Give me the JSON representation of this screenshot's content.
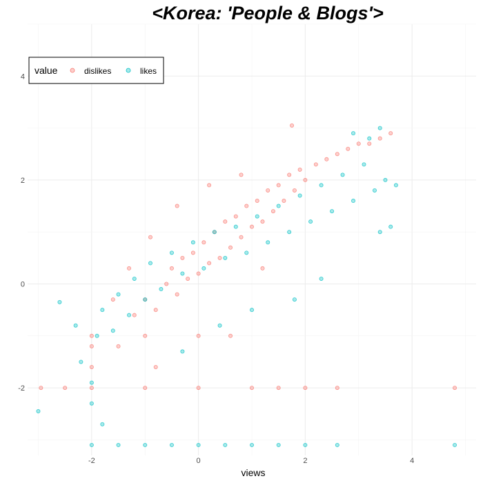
{
  "chart_data": {
    "type": "scatter",
    "title": "<Korea: 'People & Blogs'>",
    "xlabel": "views",
    "ylabel": "",
    "xlim": [
      -3.2,
      5.2
    ],
    "ylim": [
      -3.3,
      5.0
    ],
    "x_ticks": [
      -2,
      0,
      2,
      4
    ],
    "y_ticks": [
      -2,
      0,
      2,
      4
    ],
    "grid": true,
    "legend": {
      "title": "value",
      "position": "top-left",
      "entries": [
        "dislikes",
        "likes"
      ]
    },
    "series": [
      {
        "name": "dislikes",
        "color": "#F8766D",
        "points": [
          [
            -1.5,
            -1.2
          ],
          [
            -1.2,
            -0.6
          ],
          [
            -1.0,
            -0.3
          ],
          [
            -0.8,
            -0.5
          ],
          [
            -0.6,
            0.0
          ],
          [
            -0.5,
            0.3
          ],
          [
            -0.4,
            -0.2
          ],
          [
            -0.3,
            0.5
          ],
          [
            -0.2,
            0.1
          ],
          [
            -0.1,
            0.6
          ],
          [
            0.0,
            0.2
          ],
          [
            0.1,
            0.8
          ],
          [
            0.2,
            0.4
          ],
          [
            0.3,
            1.0
          ],
          [
            0.4,
            0.5
          ],
          [
            0.5,
            1.2
          ],
          [
            0.6,
            0.7
          ],
          [
            0.7,
            1.3
          ],
          [
            0.8,
            0.9
          ],
          [
            0.9,
            1.5
          ],
          [
            1.0,
            1.1
          ],
          [
            1.1,
            1.6
          ],
          [
            1.2,
            1.2
          ],
          [
            1.3,
            1.8
          ],
          [
            1.4,
            1.4
          ],
          [
            1.5,
            1.9
          ],
          [
            1.6,
            1.6
          ],
          [
            1.7,
            2.1
          ],
          [
            1.8,
            1.8
          ],
          [
            1.9,
            2.2
          ],
          [
            2.0,
            2.0
          ],
          [
            2.2,
            2.3
          ],
          [
            2.4,
            2.4
          ],
          [
            2.6,
            2.5
          ],
          [
            2.8,
            2.6
          ],
          [
            3.0,
            2.7
          ],
          [
            3.2,
            2.7
          ],
          [
            3.4,
            2.8
          ],
          [
            3.6,
            2.9
          ],
          [
            1.75,
            3.05
          ],
          [
            -1.3,
            0.3
          ],
          [
            -0.9,
            0.9
          ],
          [
            -0.4,
            1.5
          ],
          [
            0.2,
            1.9
          ],
          [
            0.8,
            2.1
          ],
          [
            -2.0,
            -1.2
          ],
          [
            -1.6,
            -0.3
          ],
          [
            1.2,
            0.3
          ],
          [
            -2.95,
            -2.0
          ],
          [
            -2.5,
            -2.0
          ],
          [
            -2.0,
            -2.0
          ],
          [
            -1.0,
            -2.0
          ],
          [
            0.0,
            -2.0
          ],
          [
            1.0,
            -2.0
          ],
          [
            1.5,
            -2.0
          ],
          [
            2.0,
            -2.0
          ],
          [
            2.6,
            -2.0
          ],
          [
            4.8,
            -2.0
          ],
          [
            -2.0,
            -1.0
          ],
          [
            -1.0,
            -1.0
          ],
          [
            0.0,
            -1.0
          ],
          [
            0.6,
            -1.0
          ],
          [
            -2.0,
            -1.6
          ],
          [
            -0.8,
            -1.6
          ]
        ]
      },
      {
        "name": "likes",
        "color": "#00BFC4",
        "points": [
          [
            -2.3,
            -0.8
          ],
          [
            -2.2,
            -1.5
          ],
          [
            -2.0,
            -1.9
          ],
          [
            -1.9,
            -1.0
          ],
          [
            -1.8,
            -0.5
          ],
          [
            -1.6,
            -0.9
          ],
          [
            -1.5,
            -0.2
          ],
          [
            -1.3,
            -0.6
          ],
          [
            -1.2,
            0.1
          ],
          [
            -1.0,
            -0.3
          ],
          [
            -0.9,
            0.4
          ],
          [
            -0.7,
            -0.1
          ],
          [
            -0.5,
            0.6
          ],
          [
            -0.3,
            0.2
          ],
          [
            -0.1,
            0.8
          ],
          [
            0.1,
            0.3
          ],
          [
            0.3,
            1.0
          ],
          [
            0.5,
            0.5
          ],
          [
            0.7,
            1.1
          ],
          [
            0.9,
            0.6
          ],
          [
            1.1,
            1.3
          ],
          [
            1.3,
            0.8
          ],
          [
            1.5,
            1.5
          ],
          [
            1.7,
            1.0
          ],
          [
            1.9,
            1.7
          ],
          [
            2.1,
            1.2
          ],
          [
            2.3,
            1.9
          ],
          [
            2.5,
            1.4
          ],
          [
            2.7,
            2.1
          ],
          [
            2.9,
            1.6
          ],
          [
            3.1,
            2.3
          ],
          [
            3.3,
            1.8
          ],
          [
            3.5,
            2.0
          ],
          [
            3.7,
            1.9
          ],
          [
            3.4,
            1.0
          ],
          [
            3.6,
            1.1
          ],
          [
            3.2,
            2.8
          ],
          [
            3.4,
            3.0
          ],
          [
            2.9,
            2.9
          ],
          [
            -2.0,
            -2.3
          ],
          [
            -1.8,
            -2.7
          ],
          [
            -3.0,
            -2.45
          ],
          [
            -2.6,
            -0.35
          ],
          [
            1.0,
            -0.5
          ],
          [
            1.8,
            -0.3
          ],
          [
            2.3,
            0.1
          ],
          [
            0.4,
            -0.8
          ],
          [
            -0.3,
            -1.3
          ],
          [
            -2.0,
            -3.1
          ],
          [
            -1.5,
            -3.1
          ],
          [
            -1.0,
            -3.1
          ],
          [
            -0.5,
            -3.1
          ],
          [
            0.0,
            -3.1
          ],
          [
            0.5,
            -3.1
          ],
          [
            1.0,
            -3.1
          ],
          [
            1.5,
            -3.1
          ],
          [
            2.0,
            -3.1
          ],
          [
            2.6,
            -3.1
          ],
          [
            4.8,
            -3.1
          ]
        ]
      }
    ]
  }
}
